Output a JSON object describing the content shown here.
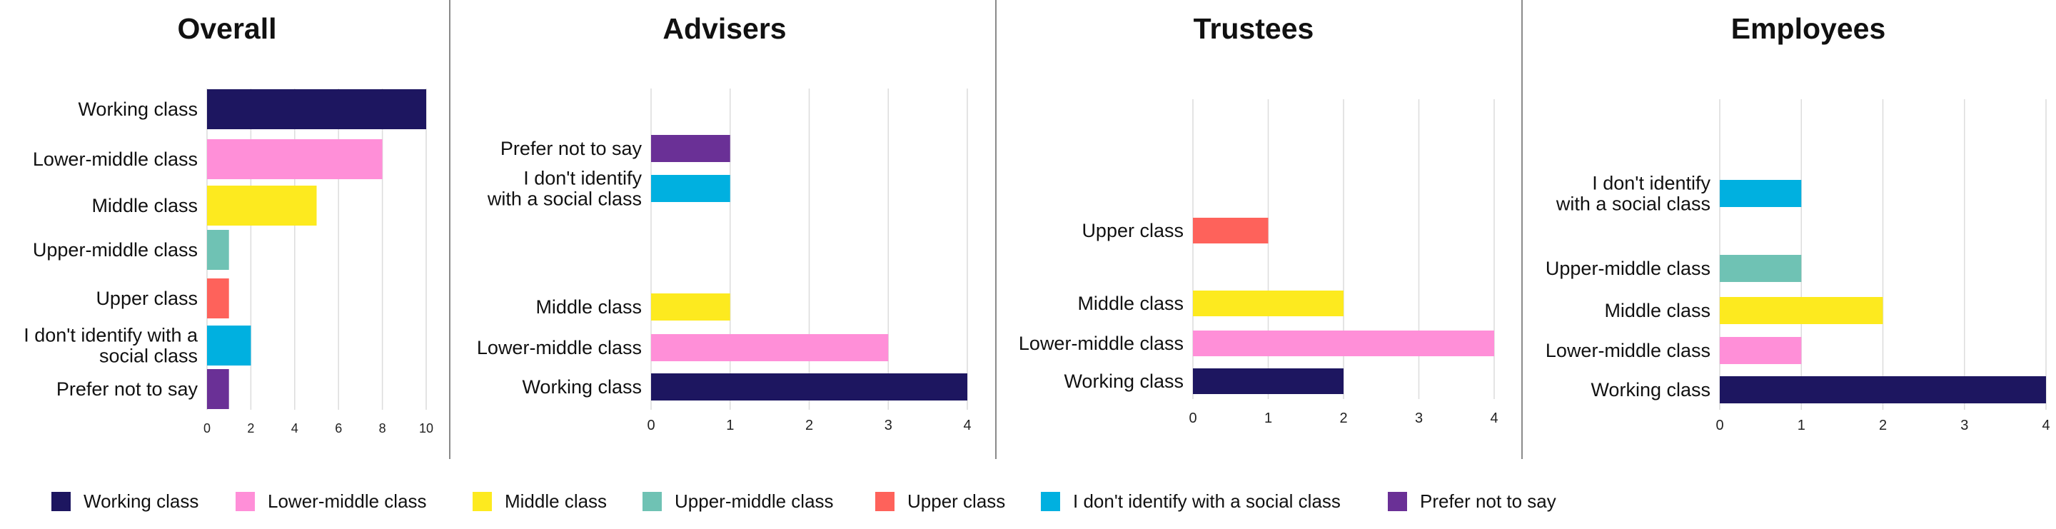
{
  "colors": {
    "Working class": "#1d1660",
    "Lower-middle class": "#ff8fd8",
    "Middle class": "#fdea1f",
    "Upper-middle class": "#6fc2b4",
    "Upper class": "#fe625b",
    "I don't identify with a social class": "#00b0e0",
    "Prefer not to say": "#6a3096"
  },
  "legend": [
    {
      "label": "Working class",
      "color": "#1d1660"
    },
    {
      "label": "Lower-middle class",
      "color": "#ff8fd8"
    },
    {
      "label": "Middle class",
      "color": "#fdea1f"
    },
    {
      "label": "Upper-middle class",
      "color": "#6fc2b4"
    },
    {
      "label": "Upper class",
      "color": "#fe625b"
    },
    {
      "label": "I don't identify with a social class",
      "color": "#00b0e0"
    },
    {
      "label": "Prefer not to say",
      "color": "#6a3096"
    }
  ],
  "chart_data": [
    {
      "type": "bar",
      "orientation": "horizontal",
      "title": "Overall",
      "categories": [
        "Working class",
        "Lower-middle class",
        "Middle class",
        "Upper-middle class",
        "Upper class",
        "I don't identify with a social class",
        "Prefer not to say"
      ],
      "category_labels": [
        [
          "Working class"
        ],
        [
          "Lower-middle class"
        ],
        [
          "Middle class"
        ],
        [
          "Upper-middle class"
        ],
        [
          "Upper class"
        ],
        [
          "I don't identify with a",
          "social class"
        ],
        [
          "Prefer not to say"
        ]
      ],
      "values": [
        10,
        8,
        5,
        1,
        1,
        2,
        1
      ],
      "xlim": [
        0,
        10
      ],
      "xticks": [
        0,
        2,
        4,
        6,
        8,
        10
      ],
      "grid": true
    },
    {
      "type": "bar",
      "orientation": "horizontal",
      "title": "Advisers",
      "categories": [
        "Prefer not to say",
        "I don't identify with a social class",
        "",
        "",
        "Middle class",
        "Lower-middle class",
        "Working class"
      ],
      "category_labels": [
        [
          "Prefer not to say"
        ],
        [
          "I don't identify",
          "with a social class"
        ],
        [],
        [],
        [
          "Middle class"
        ],
        [
          "Lower-middle class"
        ],
        [
          "Working class"
        ]
      ],
      "values": [
        1,
        1,
        null,
        null,
        1,
        3,
        4
      ],
      "xlim": [
        0,
        4
      ],
      "xticks": [
        0,
        1,
        2,
        3,
        4
      ],
      "grid": true
    },
    {
      "type": "bar",
      "orientation": "horizontal",
      "title": "Trustees",
      "categories": [
        "",
        "",
        "Upper class",
        "",
        "Middle class",
        "Lower-middle class",
        "Working class"
      ],
      "category_labels": [
        [],
        [],
        [
          "Upper class"
        ],
        [],
        [
          "Middle class"
        ],
        [
          "Lower-middle class"
        ],
        [
          "Working class"
        ]
      ],
      "values": [
        null,
        null,
        1,
        null,
        2,
        4,
        2
      ],
      "xlim": [
        0,
        4
      ],
      "xticks": [
        0,
        1,
        2,
        3,
        4
      ],
      "grid": true
    },
    {
      "type": "bar",
      "orientation": "horizontal",
      "title": "Employees",
      "categories": [
        "",
        "I don't identify with a social class",
        "",
        "Upper-middle class",
        "Middle class",
        "Lower-middle class",
        "Working class"
      ],
      "category_labels": [
        [],
        [
          "I don't identify",
          "with a social class"
        ],
        [],
        [
          "Upper-middle class"
        ],
        [
          "Middle class"
        ],
        [
          "Lower-middle class"
        ],
        [
          "Working class"
        ]
      ],
      "values": [
        null,
        1,
        null,
        1,
        2,
        1,
        4
      ],
      "xlim": [
        0,
        4
      ],
      "xticks": [
        0,
        1,
        2,
        3,
        4
      ],
      "grid": true
    }
  ]
}
